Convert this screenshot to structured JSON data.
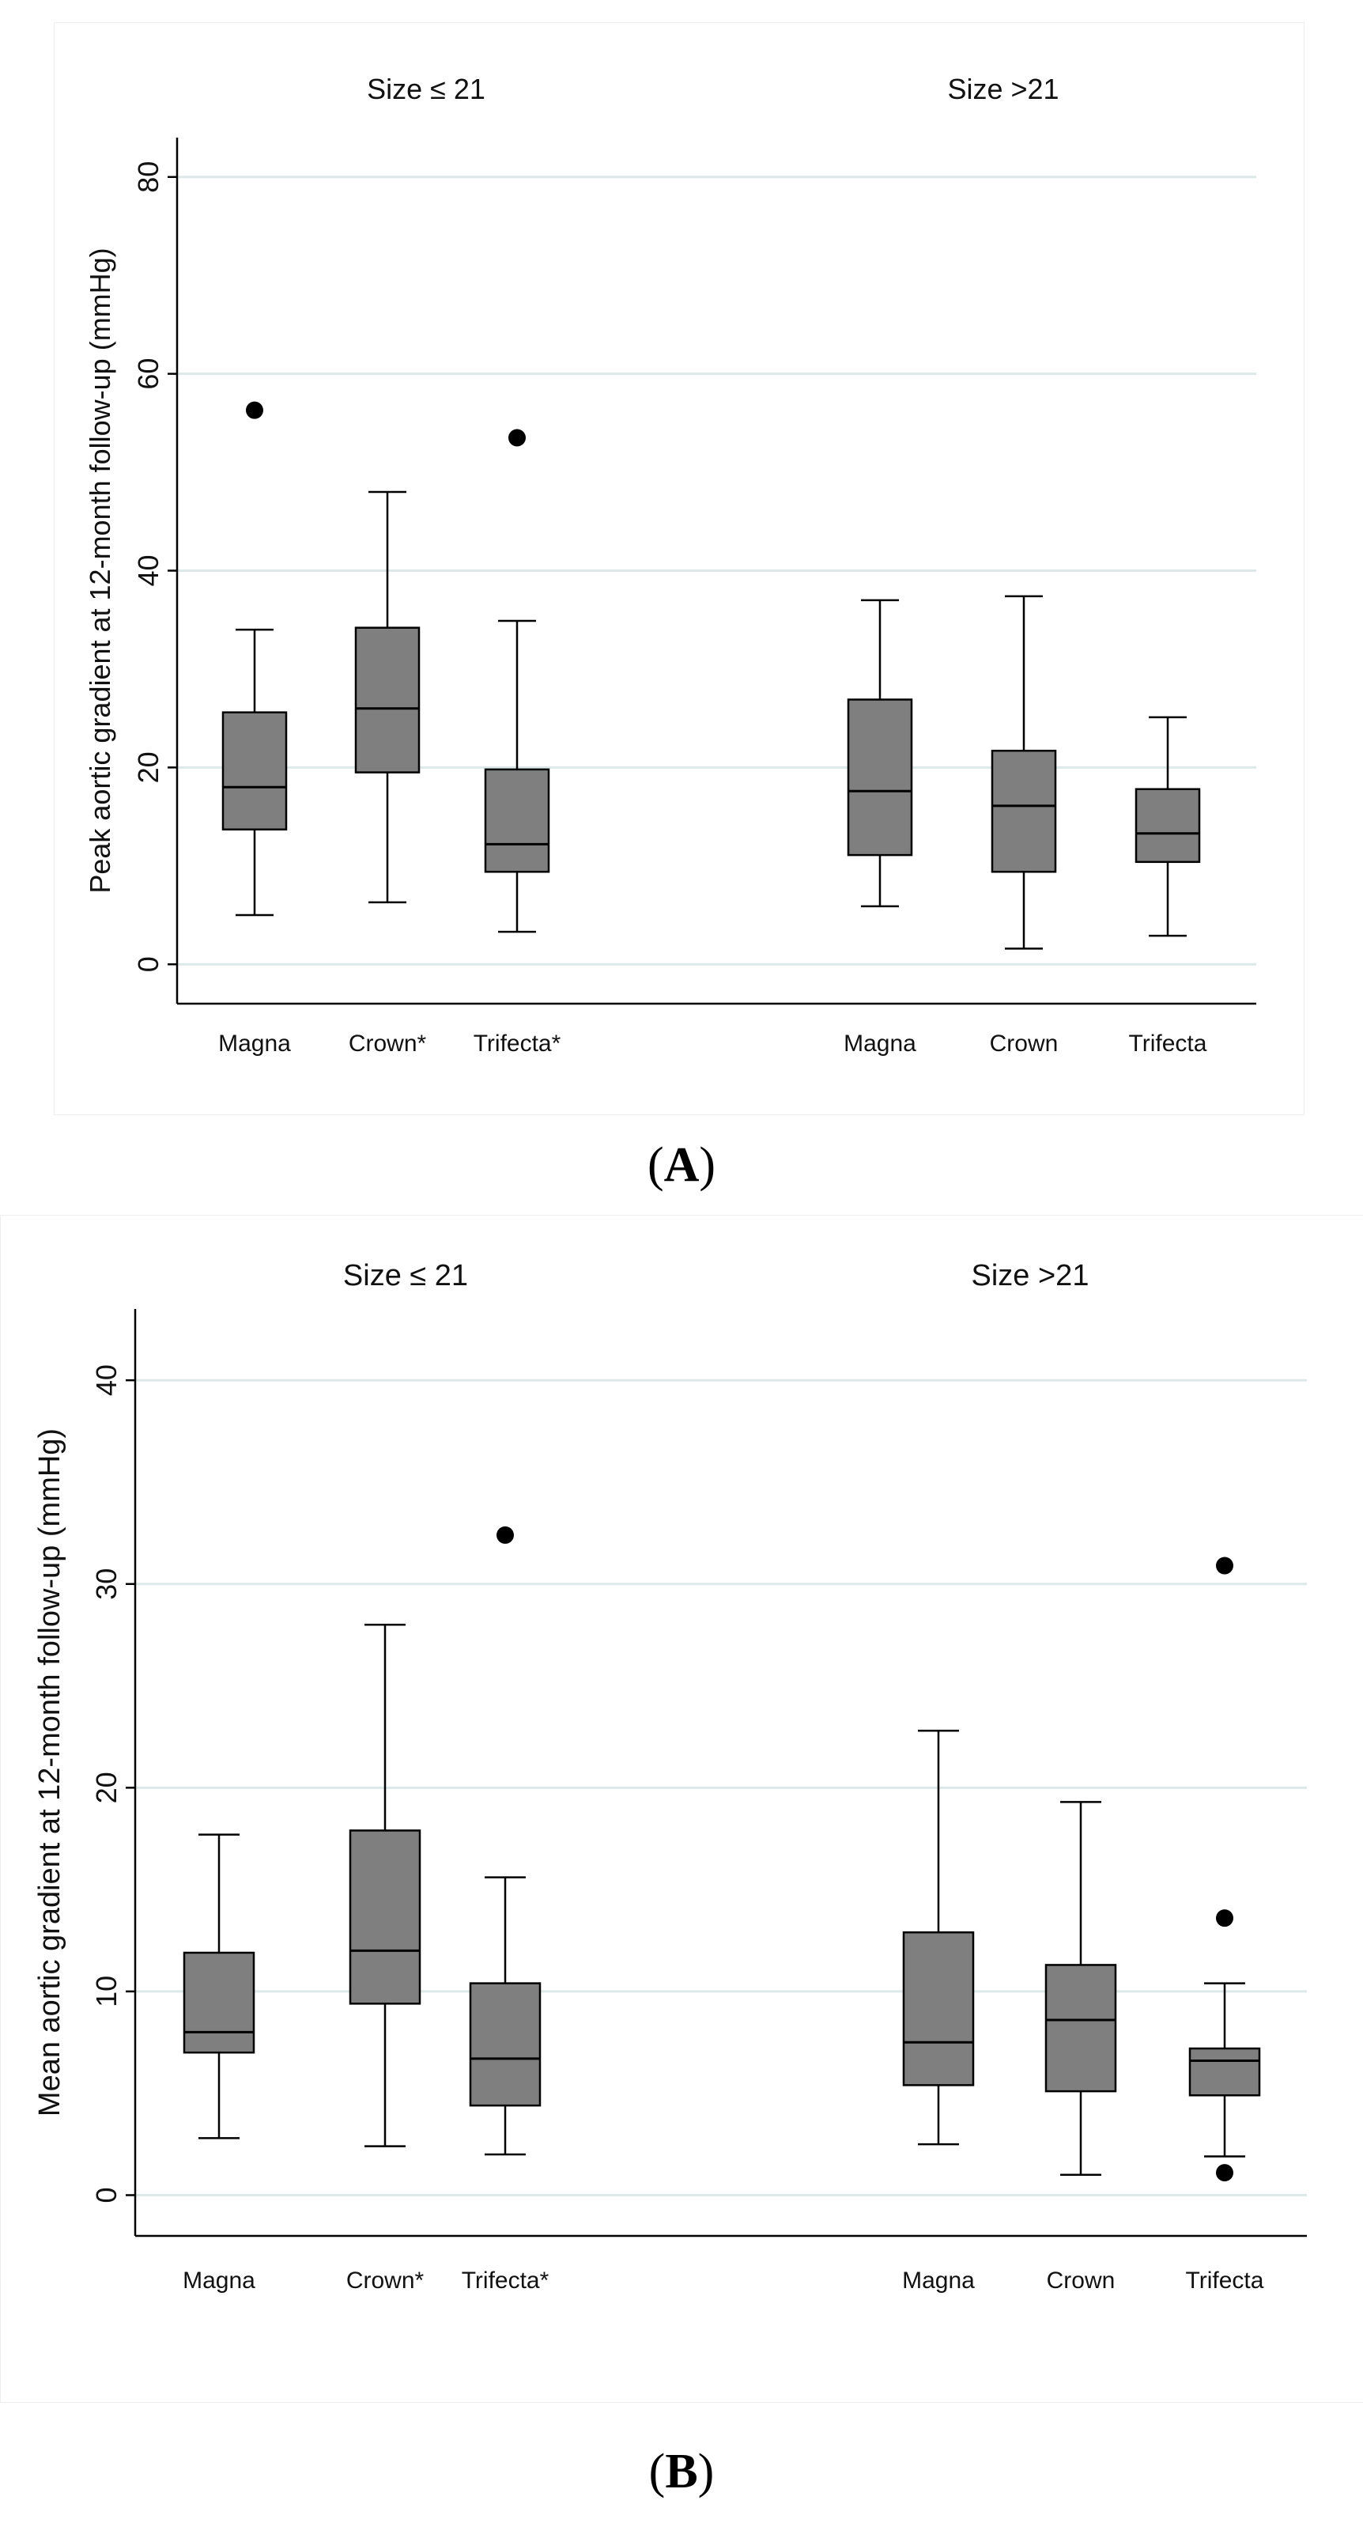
{
  "figure_labels": {
    "a": "A",
    "b": "B"
  },
  "colors": {
    "box_fill": "#7f7f7f",
    "grid": "#dde9e9",
    "axis": "#000000",
    "background": "#ffffff"
  },
  "chart_data": [
    {
      "type": "box",
      "panel": "A",
      "ylabel": "Peak aortic gradient at 12-month follow-up (mmHg)",
      "xlabel": "",
      "ylim": [
        -4,
        84
      ],
      "yticks": [
        0,
        20,
        40,
        60,
        80
      ],
      "grid": true,
      "groups": [
        {
          "title": "Size ≤ 21",
          "boxes": [
            {
              "label": "Magna",
              "whisker_low": 5,
              "q1": 13.7,
              "median": 18,
              "q3": 25.6,
              "whisker_high": 34,
              "outliers": [
                56.3
              ]
            },
            {
              "label": "Crown*",
              "whisker_low": 6.3,
              "q1": 19.5,
              "median": 26,
              "q3": 34.2,
              "whisker_high": 48,
              "outliers": []
            },
            {
              "label": "Trifecta*",
              "whisker_low": 3.3,
              "q1": 9.4,
              "median": 12.2,
              "q3": 19.8,
              "whisker_high": 34.9,
              "outliers": [
                53.5
              ]
            }
          ]
        },
        {
          "title": "Size >21",
          "boxes": [
            {
              "label": "Magna",
              "whisker_low": 5.9,
              "q1": 11.1,
              "median": 17.6,
              "q3": 26.9,
              "whisker_high": 37,
              "outliers": []
            },
            {
              "label": "Crown",
              "whisker_low": 1.6,
              "q1": 9.4,
              "median": 16.1,
              "q3": 21.7,
              "whisker_high": 37.4,
              "outliers": []
            },
            {
              "label": "Trifecta",
              "whisker_low": 2.9,
              "q1": 10.4,
              "median": 13.3,
              "q3": 17.8,
              "whisker_high": 25.1,
              "outliers": []
            }
          ]
        }
      ]
    },
    {
      "type": "box",
      "panel": "B",
      "ylabel": "Mean aortic gradient at 12-month follow-up (mmHg)",
      "xlabel": "",
      "ylim": [
        -2,
        43.5
      ],
      "yticks": [
        0,
        10,
        20,
        30,
        40
      ],
      "grid": true,
      "groups": [
        {
          "title": "Size ≤ 21",
          "boxes": [
            {
              "label": "Magna",
              "whisker_low": 2.8,
              "q1": 7,
              "median": 8,
              "q3": 11.9,
              "whisker_high": 17.7,
              "outliers": []
            },
            {
              "label": "Crown*",
              "whisker_low": 2.4,
              "q1": 9.4,
              "median": 12,
              "q3": 17.9,
              "whisker_high": 28,
              "outliers": []
            },
            {
              "label": "Trifecta*",
              "whisker_low": 2,
              "q1": 4.4,
              "median": 6.7,
              "q3": 10.4,
              "whisker_high": 15.6,
              "outliers": [
                32.4
              ]
            }
          ]
        },
        {
          "title": "Size >21",
          "boxes": [
            {
              "label": "Magna",
              "whisker_low": 2.5,
              "q1": 5.4,
              "median": 7.5,
              "q3": 12.9,
              "whisker_high": 22.8,
              "outliers": []
            },
            {
              "label": "Crown",
              "whisker_low": 1,
              "q1": 5.1,
              "median": 8.6,
              "q3": 11.3,
              "whisker_high": 19.3,
              "outliers": []
            },
            {
              "label": "Trifecta",
              "whisker_low": 1.9,
              "q1": 4.9,
              "median": 6.6,
              "q3": 7.2,
              "whisker_high": 10.4,
              "outliers": [
                30.9,
                13.6,
                1.1
              ]
            }
          ]
        }
      ]
    }
  ]
}
